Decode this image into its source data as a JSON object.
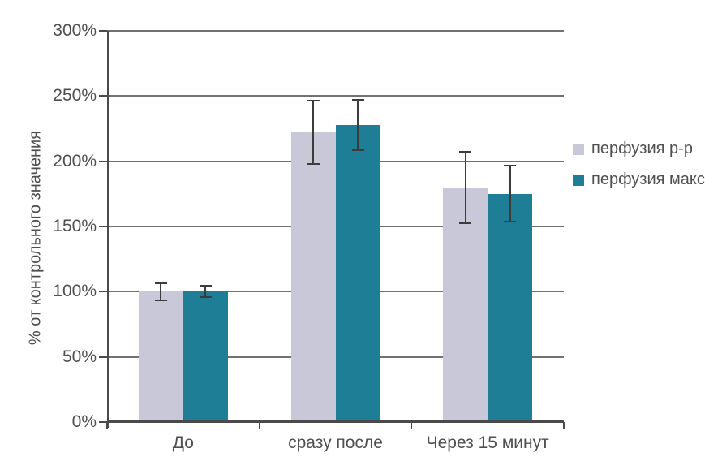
{
  "chart_data": {
    "type": "bar",
    "ylabel": "% от контрольного значения",
    "xlabel": "",
    "categories": [
      "До",
      "сразу после",
      "Через 15 минут"
    ],
    "series": [
      {
        "name": "перфузия р-р",
        "color": "#c9c8d8",
        "values": [
          100,
          222,
          180
        ],
        "errors": [
          7,
          25,
          28
        ]
      },
      {
        "name": "перфузия макс.",
        "color": "#1e7e96",
        "values": [
          100,
          228,
          175
        ],
        "errors": [
          5,
          20,
          22
        ]
      }
    ],
    "y_axis": {
      "min": 0,
      "max": 300,
      "step": 50,
      "tick_labels": [
        "0%",
        "50%",
        "100%",
        "150%",
        "200%",
        "250%",
        "300%"
      ]
    },
    "legend_position": "right",
    "grid": true,
    "error_bars": true
  },
  "style": {
    "grid_color": "#717171",
    "axis_color": "#4a4a4a",
    "error_bar_color": "#3c3c3c",
    "text_color": "#4f4f4f"
  }
}
